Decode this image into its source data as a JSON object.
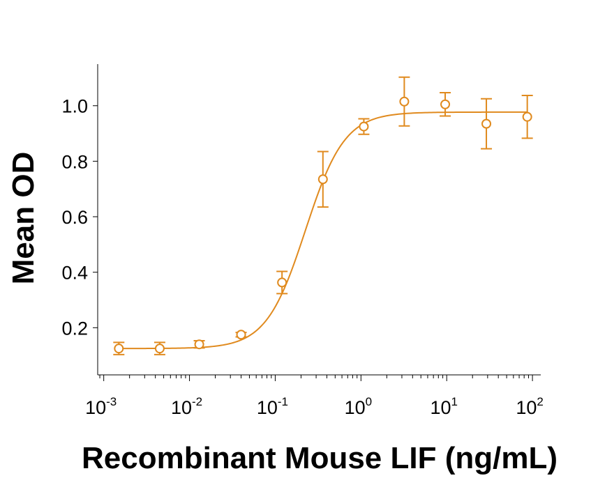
{
  "chart_data": {
    "type": "scatter",
    "title": "",
    "xlabel": "Recombinant Mouse LIF (ng/mL)",
    "ylabel": "Mean OD",
    "x_scale": "log",
    "xlim": [
      0.00085,
      125
    ],
    "ylim": [
      0.03,
      1.15
    ],
    "x_ticks": [
      {
        "value": 0.001,
        "base": "10",
        "exp": "-3"
      },
      {
        "value": 0.01,
        "base": "10",
        "exp": "-2"
      },
      {
        "value": 0.1,
        "base": "10",
        "exp": "-1"
      },
      {
        "value": 1,
        "base": "10",
        "exp": "0"
      },
      {
        "value": 10,
        "base": "10",
        "exp": "1"
      },
      {
        "value": 100,
        "base": "10",
        "exp": "2"
      }
    ],
    "y_ticks": [
      {
        "value": 0.2,
        "label": "0.2"
      },
      {
        "value": 0.4,
        "label": "0.4"
      },
      {
        "value": 0.6,
        "label": "0.6"
      },
      {
        "value": 0.8,
        "label": "0.8"
      },
      {
        "value": 1.0,
        "label": "1.0"
      }
    ],
    "grid": false,
    "color": "#E08A1E",
    "series": [
      {
        "points": [
          {
            "x": 0.0015,
            "y": 0.125,
            "err": 0.022
          },
          {
            "x": 0.0045,
            "y": 0.125,
            "err": 0.022
          },
          {
            "x": 0.013,
            "y": 0.14,
            "err": 0.013
          },
          {
            "x": 0.04,
            "y": 0.175,
            "err": 0.008
          },
          {
            "x": 0.12,
            "y": 0.363,
            "err": 0.04
          },
          {
            "x": 0.36,
            "y": 0.735,
            "err": 0.1
          },
          {
            "x": 1.08,
            "y": 0.925,
            "err": 0.028
          },
          {
            "x": 3.2,
            "y": 1.015,
            "err": 0.088
          },
          {
            "x": 9.6,
            "y": 1.005,
            "err": 0.042
          },
          {
            "x": 29,
            "y": 0.935,
            "err": 0.09
          },
          {
            "x": 87,
            "y": 0.96,
            "err": 0.077
          }
        ],
        "fit": {
          "model": "4PL",
          "bottom": 0.125,
          "top": 0.977,
          "ec50": 0.225,
          "hill": 1.9
        }
      }
    ]
  }
}
